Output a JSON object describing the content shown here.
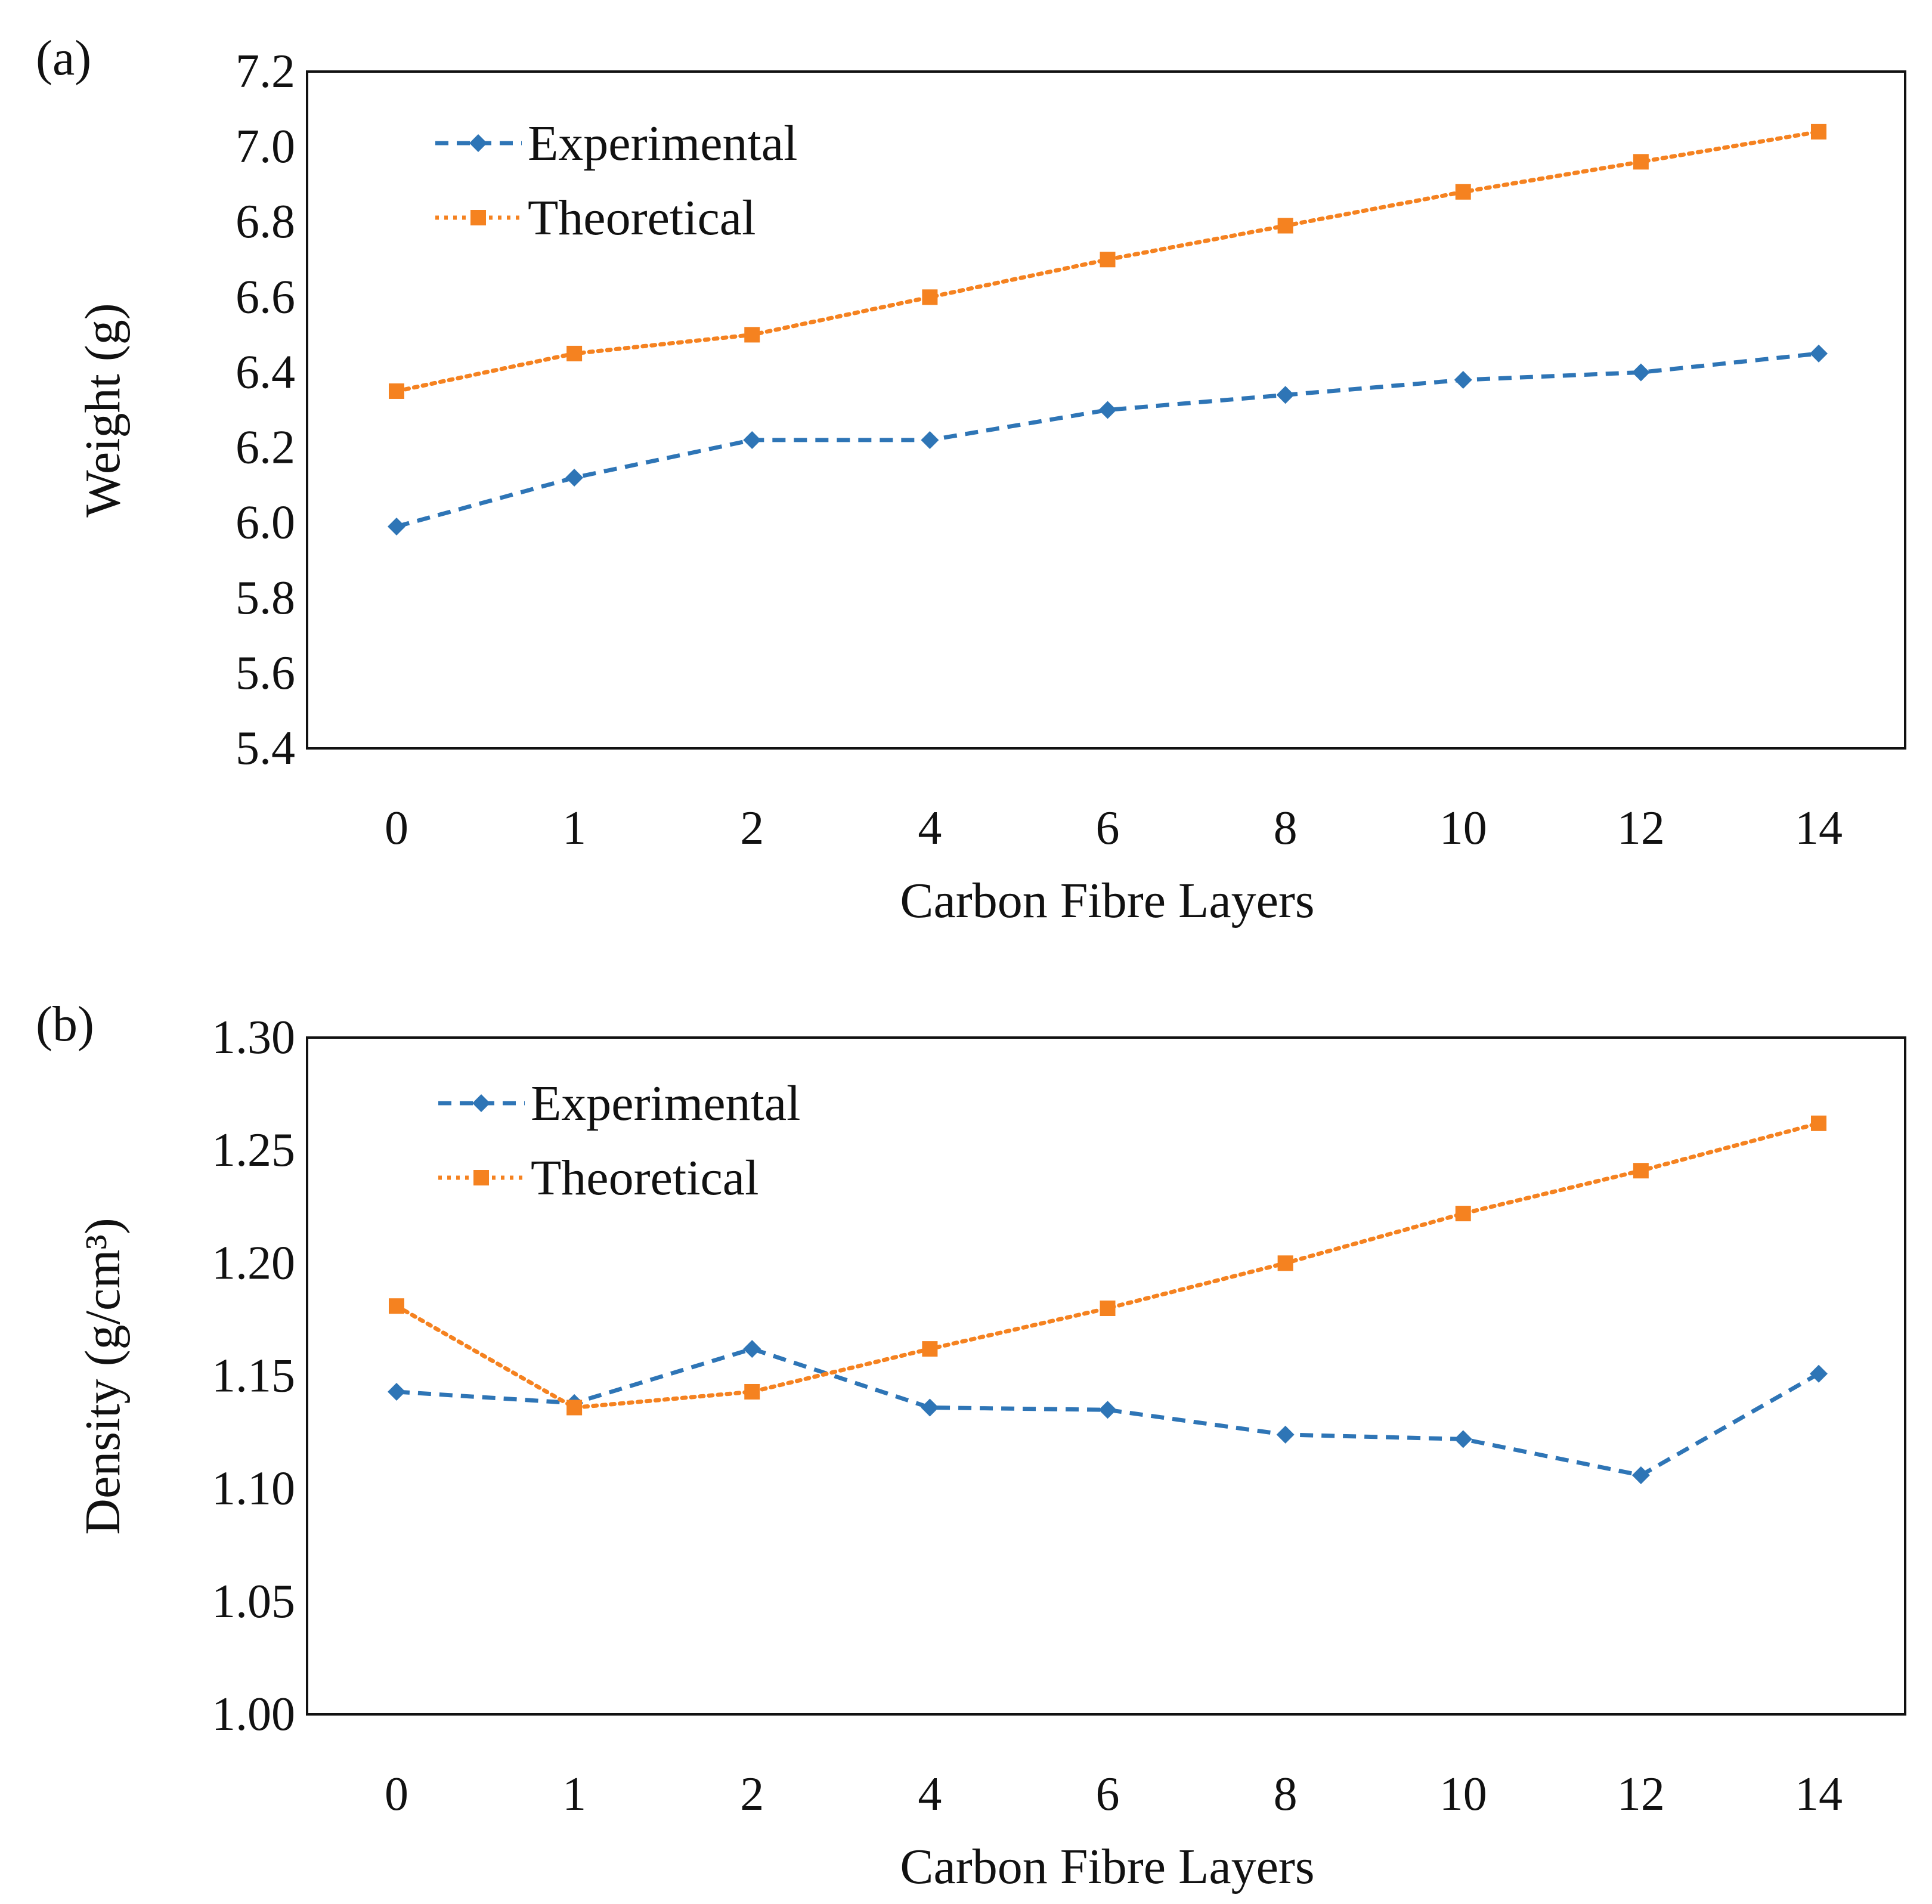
{
  "chart_data": [
    {
      "panel": "(a)",
      "type": "line",
      "categories": [
        "0",
        "1",
        "2",
        "4",
        "6",
        "8",
        "10",
        "12",
        "14"
      ],
      "xlabel": "Carbon Fibre Layers",
      "ylabel": "Weight (g)",
      "ylim": [
        5.4,
        7.2
      ],
      "yticks": [
        "5.4",
        "5.6",
        "5.8",
        "6.0",
        "6.2",
        "6.4",
        "6.6",
        "6.8",
        "7.0",
        "7.2"
      ],
      "grid": false,
      "legend": "top-left",
      "series": [
        {
          "name": "Experimental",
          "color": "#2e75b6",
          "marker": "diamond",
          "dash": "dashed",
          "values": [
            5.99,
            6.12,
            6.22,
            6.22,
            6.3,
            6.34,
            6.38,
            6.4,
            6.45
          ]
        },
        {
          "name": "Theoretical",
          "color": "#f58220",
          "marker": "square",
          "dash": "dotted",
          "values": [
            6.35,
            6.45,
            6.5,
            6.6,
            6.7,
            6.79,
            6.88,
            6.96,
            7.04
          ]
        }
      ]
    },
    {
      "panel": "(b)",
      "type": "line",
      "categories": [
        "0",
        "1",
        "2",
        "4",
        "6",
        "8",
        "10",
        "12",
        "14"
      ],
      "xlabel": "Carbon Fibre Layers",
      "ylabel": "Density (g/cm³)",
      "ylim": [
        1.0,
        1.3
      ],
      "yticks": [
        "1.00",
        "1.05",
        "1.10",
        "1.15",
        "1.20",
        "1.25",
        "1.30"
      ],
      "grid": false,
      "legend": "top-left",
      "series": [
        {
          "name": "Experimental",
          "color": "#2e75b6",
          "marker": "diamond",
          "dash": "dashed",
          "values": [
            1.143,
            1.138,
            1.162,
            1.136,
            1.135,
            1.124,
            1.122,
            1.106,
            1.151
          ]
        },
        {
          "name": "Theoretical",
          "color": "#f58220",
          "marker": "square",
          "dash": "dotted",
          "values": [
            1.181,
            1.136,
            1.143,
            1.162,
            1.18,
            1.2,
            1.222,
            1.241,
            1.262
          ]
        }
      ]
    }
  ]
}
